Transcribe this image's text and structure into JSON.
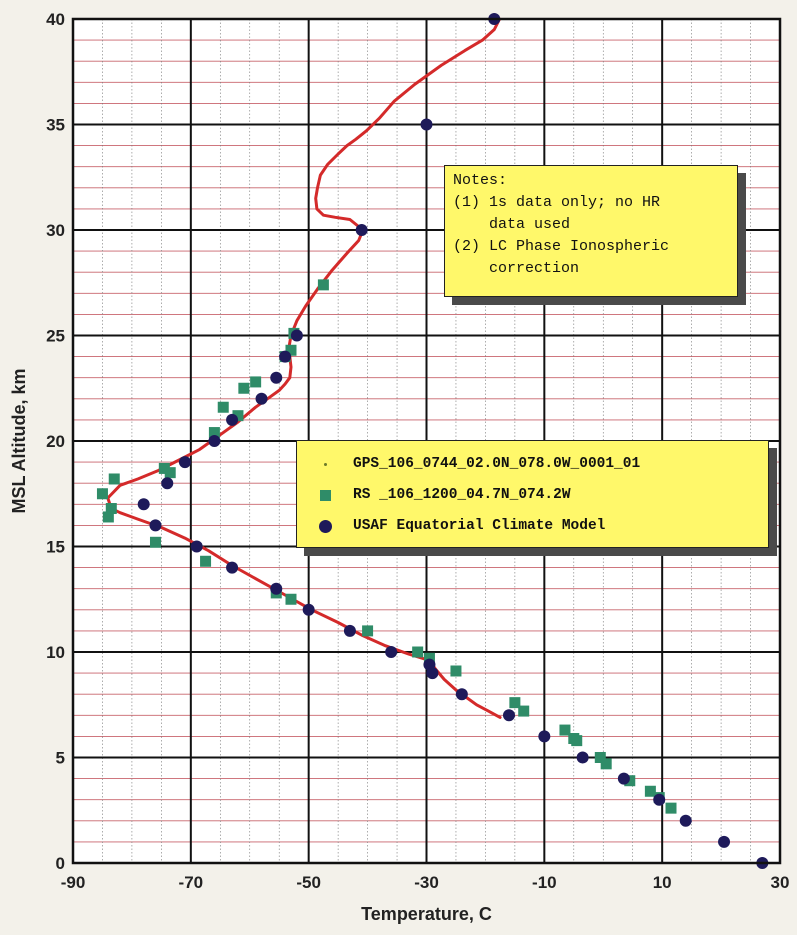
{
  "chart_data": {
    "type": "scatter",
    "xlabel": "Temperature, C",
    "ylabel": "MSL Altitude, km",
    "xlim": [
      -90,
      30
    ],
    "ylim": [
      0,
      40
    ],
    "x_ticks": [
      -90,
      -70,
      -50,
      -30,
      -10,
      10,
      30
    ],
    "x_tick_labels": [
      "-90",
      "-70",
      "-50",
      "-30",
      "-10",
      "10",
      "30"
    ],
    "y_ticks": [
      0,
      5,
      10,
      15,
      20,
      25,
      30,
      35,
      40
    ],
    "y_tick_labels": [
      "0",
      "5",
      "10",
      "15",
      "20",
      "25",
      "30",
      "35",
      "40"
    ],
    "grid": true,
    "series": [
      {
        "name": "GPS_106_0744_02.0N_078.0W_0001_01",
        "style": "line",
        "color": "#d42a2a",
        "x": [
          -17.6,
          -18.5,
          -20.5,
          -23.5,
          -27.5,
          -32,
          -35.5,
          -38,
          -40.2,
          -42,
          -43.5,
          -45,
          -46.8,
          -48,
          -48.5,
          -48.8,
          -48.6,
          -47.5,
          -45.5,
          -43,
          -40.8,
          -41.5,
          -43.5,
          -46,
          -48.5,
          -50.5,
          -52,
          -53,
          -53.3,
          -53.2,
          -53,
          -53.2,
          -54,
          -55,
          -56.5,
          -59,
          -62,
          -65,
          -68.5,
          -72,
          -75.5,
          -79,
          -82,
          -84.1,
          -83.5,
          -82,
          -79,
          -75,
          -71,
          -67,
          -63,
          -58.5,
          -54,
          -49.5,
          -45,
          -41,
          -37,
          -33,
          -29.5,
          -28.5,
          -27,
          -25,
          -23,
          -21.5,
          -19.5,
          -17.5
        ],
        "y": [
          40,
          39.5,
          39,
          38.5,
          37.8,
          36.9,
          36.1,
          35.3,
          34.7,
          34.3,
          34,
          33.6,
          33.1,
          32.6,
          32,
          31.5,
          31,
          30.7,
          30.6,
          30.5,
          30,
          29.5,
          28.9,
          28.1,
          27.2,
          26.4,
          25.7,
          25,
          24.5,
          24,
          23.5,
          23,
          22.7,
          22.4,
          22.1,
          21.6,
          20.9,
          20.3,
          19.6,
          19.1,
          18.6,
          18.2,
          17.9,
          17.3,
          16.8,
          16.6,
          16.3,
          15.9,
          15.4,
          14.8,
          14.1,
          13.4,
          12.7,
          12,
          11.4,
          10.8,
          10.3,
          9.9,
          9.6,
          9.2,
          8.7,
          8.2,
          7.8,
          7.5,
          7.2,
          6.9
        ]
      },
      {
        "name": "RS _106_1200_04.7N_074.2W",
        "style": "square",
        "color": "#2f8c68",
        "x": [
          -47.5,
          -53,
          -52.5,
          -54,
          -59,
          -61,
          -64.5,
          -62,
          -66,
          -74.5,
          -73.5,
          -83,
          -85,
          -84,
          -83.5,
          -76,
          -67.5,
          -55.5,
          -53,
          -40,
          -31.5,
          -29.5,
          -25,
          -15,
          -13.5,
          -6.5,
          -5,
          -4.5,
          -0.5,
          0.5,
          4.5,
          8,
          9.5,
          11.5
        ],
        "y": [
          27.4,
          24.3,
          25.1,
          24,
          22.8,
          22.5,
          21.6,
          21.2,
          20.4,
          18.7,
          18.5,
          18.2,
          17.5,
          16.4,
          16.8,
          15.2,
          14.3,
          12.8,
          12.5,
          11,
          10,
          9.7,
          9.1,
          7.6,
          7.2,
          6.3,
          5.9,
          5.8,
          5,
          4.7,
          3.9,
          3.4,
          3.1,
          2.6
        ]
      },
      {
        "name": "USAF Equatorial Climate Model",
        "style": "circle",
        "color": "#1e1a5a",
        "x": [
          -18.5,
          -30,
          -41,
          -52,
          -54,
          -55.5,
          -58,
          -63,
          -66,
          -71,
          -74,
          -78,
          -76,
          -69,
          -63,
          -55.5,
          -50,
          -43,
          -36,
          -29.5,
          -29,
          -24,
          -16,
          -10,
          -3.5,
          3.5,
          9.5,
          14,
          20.5,
          27
        ],
        "y": [
          40,
          35,
          30,
          25,
          24,
          23,
          22,
          21,
          20,
          19,
          18,
          17,
          16,
          15,
          14,
          13,
          12,
          11,
          10,
          9.4,
          9,
          8,
          7,
          6,
          5,
          4,
          3,
          2,
          1,
          0
        ]
      }
    ]
  },
  "notes": {
    "title": "Notes:",
    "lines": [
      "(1) 1s data only; no HR",
      "    data used",
      "(2) LC Phase Ionospheric",
      "    correction"
    ]
  },
  "legend": {
    "entries": [
      {
        "label": "GPS_106_0744_02.0N_078.0W_0001_01",
        "icon": "dot-marker"
      },
      {
        "label": "RS _106_1200_04.7N_074.2W",
        "icon": "square-marker"
      },
      {
        "label": "USAF Equatorial Climate Model",
        "icon": "circle-marker"
      }
    ]
  },
  "colors": {
    "plot_background": "#ffffff",
    "major_grid": "#111111",
    "minor_grid_horizontal": "#c8636b",
    "minor_grid_vertical": "#777777",
    "annotation_box": "#fff86a"
  }
}
